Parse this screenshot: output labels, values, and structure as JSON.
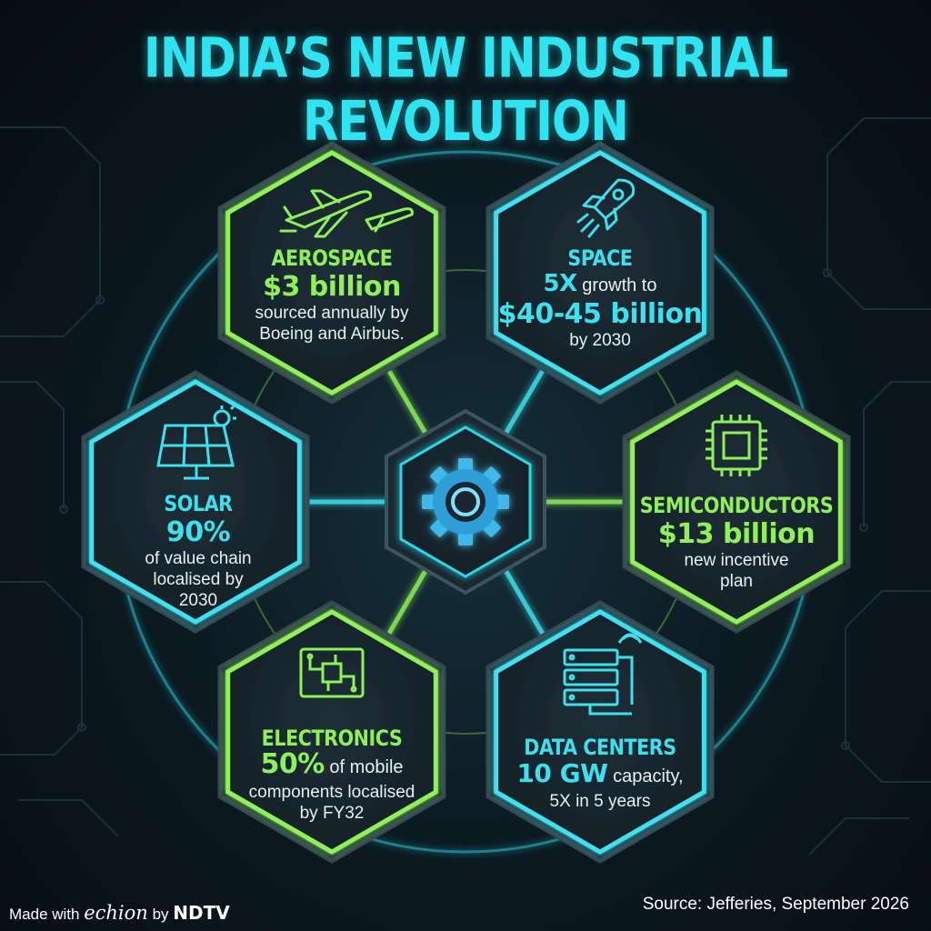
{
  "title": "INDIA’S NEW INDUSTRIAL REVOLUTION",
  "colors": {
    "green": "#8ff05a",
    "cyan": "#3fe0ee",
    "background": "#0c1a22"
  },
  "center": {
    "icon": "gear-icon"
  },
  "sectors": [
    {
      "id": "aerospace",
      "icon": "airplane-icon",
      "color": "green",
      "title": "AEROSPACE",
      "highlight": "$3 billion",
      "text": [
        "sourced annually by",
        "Boeing and Airbus."
      ]
    },
    {
      "id": "space",
      "icon": "rocket-icon",
      "color": "cyan",
      "title": "SPACE",
      "prefix": "5X",
      "prefix_text": " growth to",
      "highlight": "$40-45 billion",
      "text": [
        "by 2030"
      ]
    },
    {
      "id": "solar",
      "icon": "solar-panel-icon",
      "color": "cyan",
      "title": "SOLAR",
      "highlight": "90%",
      "text": [
        "of value chain",
        "localised by",
        "2030"
      ]
    },
    {
      "id": "semiconductors",
      "icon": "chip-icon",
      "color": "green",
      "title": "SEMICONDUCTORS",
      "highlight": "$13 billion",
      "text": [
        "new incentive",
        "plan"
      ]
    },
    {
      "id": "electronics",
      "icon": "circuit-board-icon",
      "color": "green",
      "title": "ELECTRONICS",
      "highlight": "50%",
      "highlight_text": " of mobile",
      "text": [
        "components localised",
        "by FY32"
      ]
    },
    {
      "id": "data_centers",
      "icon": "server-rack-icon",
      "color": "cyan",
      "title": "DATA CENTERS",
      "highlight": "10 GW",
      "highlight_text": " capacity,",
      "text": [
        "5X in 5 years"
      ]
    }
  ],
  "footer": {
    "made_with": "Made with",
    "brand1": "echion",
    "by": "by",
    "brand2": "NDTV",
    "source": "Source: Jefferies, September 2026"
  }
}
